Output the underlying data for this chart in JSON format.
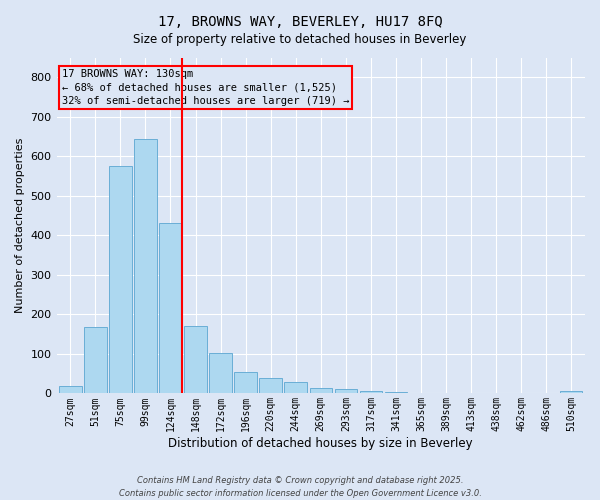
{
  "title1": "17, BROWNS WAY, BEVERLEY, HU17 8FQ",
  "title2": "Size of property relative to detached houses in Beverley",
  "xlabel": "Distribution of detached houses by size in Beverley",
  "ylabel": "Number of detached properties",
  "bar_color": "#add8f0",
  "bar_edge_color": "#6aaed6",
  "vline_color": "red",
  "annotation_title": "17 BROWNS WAY: 130sqm",
  "annotation_line2": "← 68% of detached houses are smaller (1,525)",
  "annotation_line3": "32% of semi-detached houses are larger (719) →",
  "annotation_box_color": "red",
  "footer1": "Contains HM Land Registry data © Crown copyright and database right 2025.",
  "footer2": "Contains public sector information licensed under the Open Government Licence v3.0.",
  "categories": [
    "27sqm",
    "51sqm",
    "75sqm",
    "99sqm",
    "124sqm",
    "148sqm",
    "172sqm",
    "196sqm",
    "220sqm",
    "244sqm",
    "269sqm",
    "293sqm",
    "317sqm",
    "341sqm",
    "365sqm",
    "389sqm",
    "413sqm",
    "438sqm",
    "462sqm",
    "486sqm",
    "510sqm"
  ],
  "values": [
    18,
    168,
    575,
    645,
    430,
    170,
    103,
    55,
    38,
    30,
    14,
    10,
    5,
    3,
    2,
    0,
    0,
    0,
    0,
    0,
    5
  ],
  "ylim": [
    0,
    850
  ],
  "yticks": [
    0,
    100,
    200,
    300,
    400,
    500,
    600,
    700,
    800
  ],
  "background_color": "#dce6f5",
  "grid_color": "white"
}
